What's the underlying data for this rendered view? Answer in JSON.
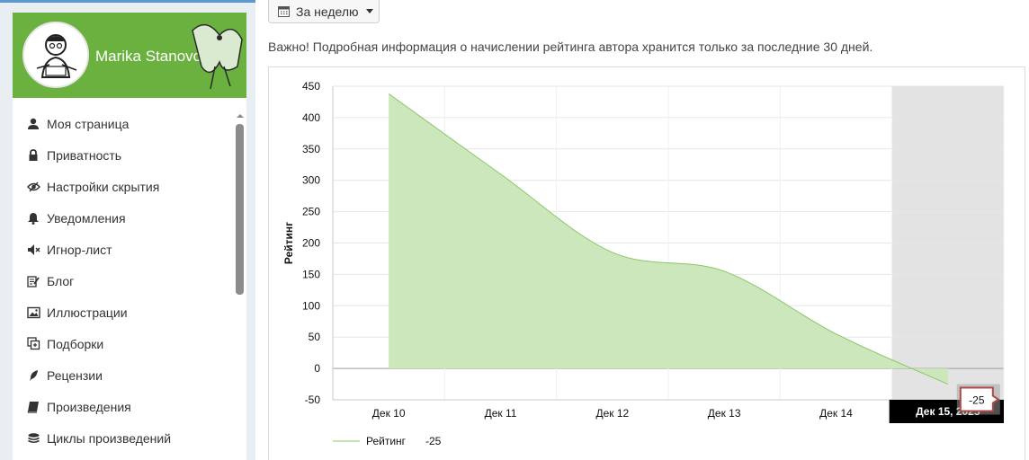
{
  "user": {
    "name": "Marika Stanovoi"
  },
  "sidebar": {
    "items": [
      {
        "label": "Моя страница",
        "icon": "user-icon"
      },
      {
        "label": "Приватность",
        "icon": "lock-icon"
      },
      {
        "label": "Настройки скрытия",
        "icon": "eye-slash-icon"
      },
      {
        "label": "Уведомления",
        "icon": "bell-icon"
      },
      {
        "label": "Игнор-лист",
        "icon": "volume-off-icon"
      },
      {
        "label": "Блог",
        "icon": "edit-icon"
      },
      {
        "label": "Иллюстрации",
        "icon": "picture-icon"
      },
      {
        "label": "Подборки",
        "icon": "collection-icon"
      },
      {
        "label": "Рецензии",
        "icon": "quill-icon"
      },
      {
        "label": "Произведения",
        "icon": "book-icon"
      },
      {
        "label": "Циклы произведений",
        "icon": "stack-icon"
      }
    ]
  },
  "period": {
    "label": "За неделю"
  },
  "notice": "Важно! Подробная информация о начислении рейтинга автора хранится только за последние 30 дней.",
  "chart_data": {
    "type": "area",
    "ylabel": "Рейтинг",
    "xlabel": "",
    "categories": [
      "Дек 10",
      "Дек 11",
      "Дек 12",
      "Дек 13",
      "Дек 14",
      "Дек 15"
    ],
    "series": [
      {
        "name": "Рейтинг",
        "values": [
          438,
          310,
          185,
          155,
          55,
          -25
        ],
        "color": "#8cc665"
      }
    ],
    "ylim": [
      -50,
      450
    ],
    "yticks": [
      450,
      400,
      350,
      300,
      250,
      200,
      150,
      100,
      50,
      0,
      -50
    ],
    "grid": true,
    "highlight_category": "Дек 15",
    "tooltip": {
      "value": "-25",
      "x_label": "Дек 15, 2025"
    },
    "legend": {
      "position": "bottom-left",
      "label": "Рейтинг",
      "value": "-25"
    }
  }
}
